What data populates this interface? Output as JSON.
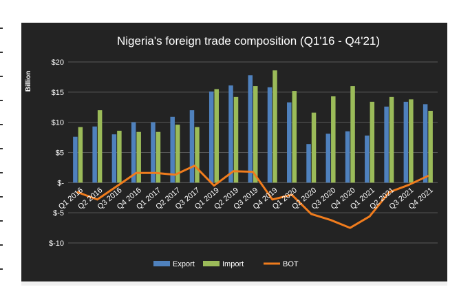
{
  "chart_data": {
    "type": "bar",
    "title": "Nigeria's foreign trade composition (Q1'16 - Q4'21)",
    "ylabel": "Billion",
    "xlabel": "",
    "ylim": [
      -10,
      20
    ],
    "yticks": [
      {
        "value": 20,
        "label": "$20"
      },
      {
        "value": 15,
        "label": "$15"
      },
      {
        "value": 10,
        "label": "$10"
      },
      {
        "value": 5,
        "label": "$5"
      },
      {
        "value": 0,
        "label": "$-"
      },
      {
        "value": -5,
        "label": "$-5"
      },
      {
        "value": -10,
        "label": "$-10"
      }
    ],
    "grid": true,
    "legend_position": "bottom",
    "categories": [
      "Q1 2016",
      "Q2 2016",
      "Q3 2016",
      "Q4 2016",
      "Q1 2017",
      "Q2 2017",
      "Q3 2017",
      "Q1 2019",
      "Q2 2019",
      "Q3 2019",
      "Q4 2019",
      "Q1 2020",
      "Q2 2020",
      "Q3 2020",
      "Q4 2020",
      "Q1 2021",
      "Q2 2021",
      "Q3 2021",
      "Q4 2021"
    ],
    "series": [
      {
        "name": "Export",
        "type": "bar",
        "color": "#4f81bd",
        "values": [
          7.6,
          9.3,
          8.0,
          10.0,
          10.0,
          10.9,
          12.0,
          15.1,
          16.1,
          17.8,
          15.8,
          13.3,
          6.4,
          8.1,
          8.5,
          7.8,
          12.6,
          13.4,
          13.0
        ]
      },
      {
        "name": "Import",
        "type": "bar",
        "color": "#9bbb59",
        "values": [
          9.2,
          12.0,
          8.6,
          8.4,
          8.4,
          9.6,
          9.2,
          15.5,
          14.2,
          16.0,
          18.6,
          15.2,
          11.6,
          14.3,
          16.0,
          13.4,
          14.2,
          13.8,
          11.9
        ]
      },
      {
        "name": "BOT",
        "type": "line",
        "color": "#f07c1d",
        "values": [
          -1.6,
          -2.8,
          -0.6,
          1.6,
          1.6,
          1.3,
          2.8,
          -0.5,
          1.9,
          1.8,
          -2.8,
          -2.0,
          -5.2,
          -6.2,
          -7.5,
          -5.6,
          -1.6,
          -0.4,
          1.1
        ]
      }
    ]
  }
}
